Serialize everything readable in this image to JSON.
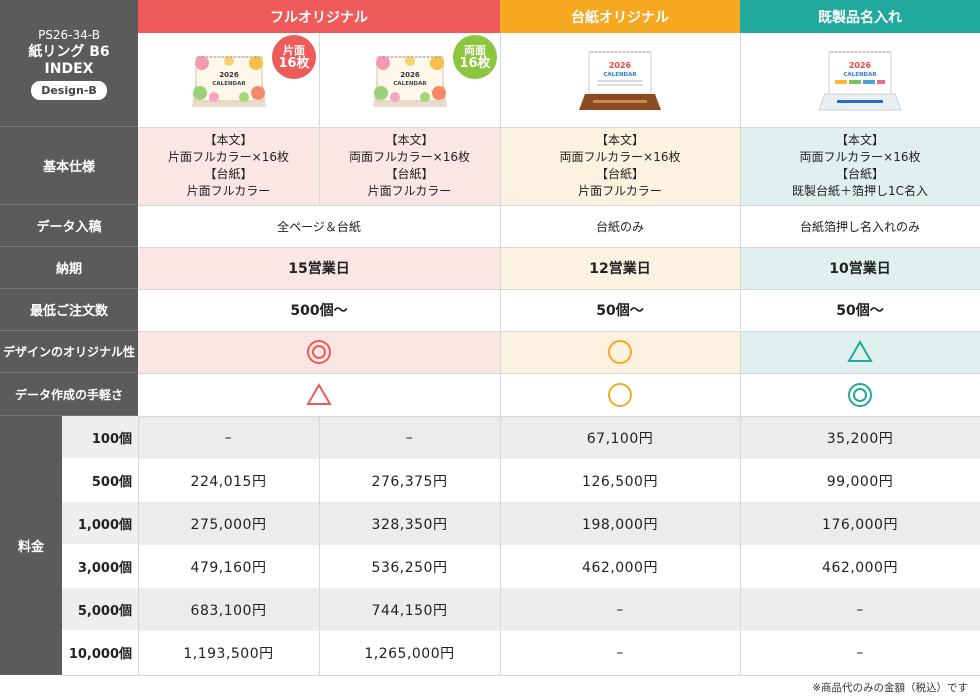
{
  "colors": {
    "red": "#ef5b5b",
    "orange": "#f6a821",
    "teal": "#20a99c",
    "gray_label": "#5b5b5b"
  },
  "title": {
    "code": "PS26-34-B",
    "name": "紙リング B6",
    "index": "INDEX",
    "design": "Design-B"
  },
  "headers": {
    "full": "フルオリジナル",
    "daishi": "台紙オリジナル",
    "kisei": "既製品名入れ"
  },
  "badges": {
    "single_top": "片面",
    "single_bottom": "16枚",
    "double_top": "両面",
    "double_bottom": "16枚"
  },
  "calendar_text": {
    "year": "2026",
    "word": "CALENDAR"
  },
  "row_labels": {
    "spec": "基本仕様",
    "data": "データ入稿",
    "delivery": "納期",
    "min_order": "最低ご注文数",
    "originality": "デザインのオリジナル性",
    "ease": "データ作成の手軽さ",
    "price": "料金"
  },
  "spec": {
    "c1": {
      "h1": "【本文】",
      "v1": "片面フルカラー×16枚",
      "h2": "【台紙】",
      "v2": "片面フルカラー"
    },
    "c2": {
      "h1": "【本文】",
      "v1": "両面フルカラー×16枚",
      "h2": "【台紙】",
      "v2": "片面フルカラー"
    },
    "c3": {
      "h1": "【本文】",
      "v1": "両面フルカラー×16枚",
      "h2": "【台紙】",
      "v2": "片面フルカラー"
    },
    "c4": {
      "h1": "【本文】",
      "v1": "両面フルカラー×16枚",
      "h2": "【台紙】",
      "v2": "既製台紙＋箔押し1C名入"
    }
  },
  "data_entry": {
    "full": "全ページ＆台紙",
    "daishi": "台紙のみ",
    "kisei": "台紙箔押し名入れのみ"
  },
  "delivery": {
    "full": "15営業日",
    "daishi": "12営業日",
    "kisei": "10営業日"
  },
  "min_order": {
    "full": "500個〜",
    "daishi": "50個〜",
    "kisei": "50個〜"
  },
  "originality": {
    "full": "double-circle",
    "daishi": "circle",
    "kisei": "triangle"
  },
  "ease": {
    "full": "triangle",
    "daishi": "circle",
    "kisei": "double-circle"
  },
  "prices": [
    {
      "qty": "100個",
      "c1": "–",
      "c2": "–",
      "c3": "67,100円",
      "c4": "35,200円"
    },
    {
      "qty": "500個",
      "c1": "224,015円",
      "c2": "276,375円",
      "c3": "126,500円",
      "c4": "99,000円"
    },
    {
      "qty": "1,000個",
      "c1": "275,000円",
      "c2": "328,350円",
      "c3": "198,000円",
      "c4": "176,000円"
    },
    {
      "qty": "3,000個",
      "c1": "479,160円",
      "c2": "536,250円",
      "c3": "462,000円",
      "c4": "462,000円"
    },
    {
      "qty": "5,000個",
      "c1": "683,100円",
      "c2": "744,150円",
      "c3": "–",
      "c4": "–"
    },
    {
      "qty": "10,000個",
      "c1": "1,193,500円",
      "c2": "1,265,000円",
      "c3": "–",
      "c4": "–"
    }
  ],
  "footnote": "※商品代のみの金額（税込）です"
}
